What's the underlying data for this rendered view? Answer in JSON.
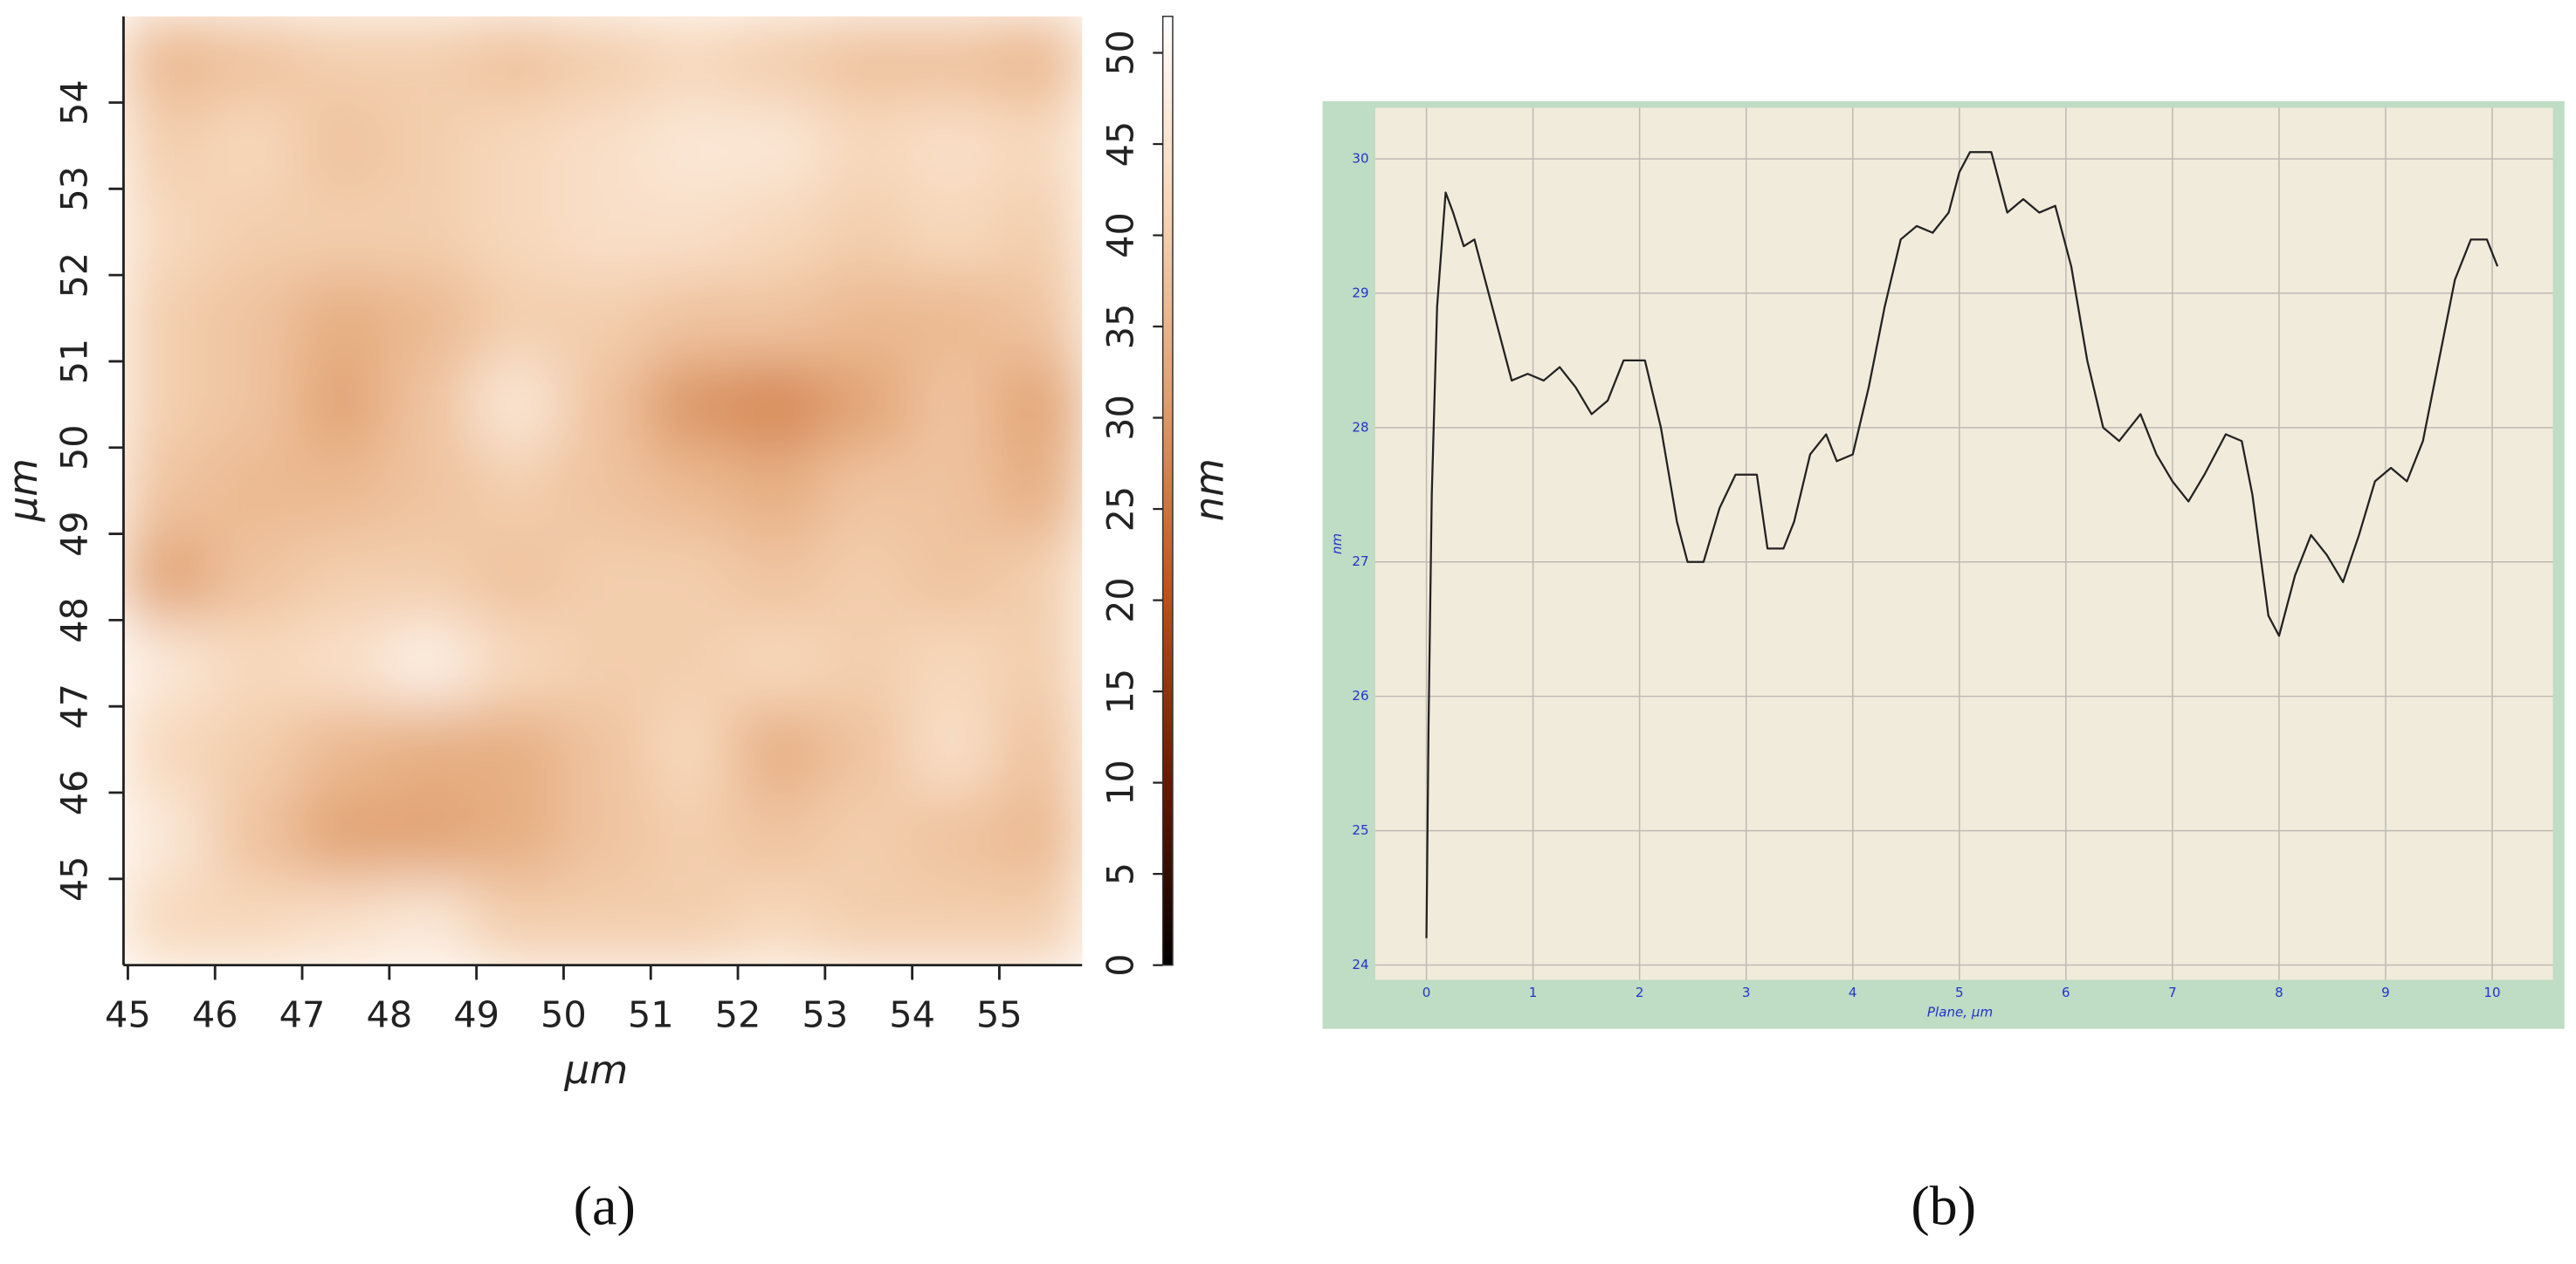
{
  "chart_data": [
    {
      "type": "heatmap",
      "xlabel": "µm",
      "ylabel": "µm",
      "zlabel": "nm",
      "xlim": [
        44.95,
        55.95
      ],
      "ylim": [
        44.0,
        55.0
      ],
      "zlim": [
        0,
        52
      ],
      "xticks": [
        45,
        46,
        47,
        48,
        49,
        50,
        51,
        52,
        53,
        54,
        55
      ],
      "yticks": [
        45,
        46,
        47,
        48,
        49,
        50,
        51,
        52,
        53,
        54
      ],
      "zticks": [
        0,
        5,
        10,
        15,
        20,
        25,
        30,
        35,
        40,
        45,
        50
      ],
      "colorscale": [
        "#000000",
        "#6b1a00",
        "#c0551a",
        "#e0a070",
        "#f7d6b8",
        "#ffffff"
      ],
      "z": [
        [
          36,
          38,
          40,
          40,
          38,
          40,
          42,
          40,
          38,
          38,
          36
        ],
        [
          40,
          42,
          38,
          40,
          42,
          44,
          46,
          46,
          42,
          44,
          42
        ],
        [
          42,
          40,
          40,
          40,
          42,
          44,
          44,
          42,
          40,
          42,
          40
        ],
        [
          40,
          38,
          34,
          36,
          40,
          40,
          38,
          38,
          36,
          36,
          38
        ],
        [
          40,
          38,
          32,
          38,
          46,
          38,
          30,
          28,
          32,
          38,
          32
        ],
        [
          38,
          36,
          36,
          38,
          40,
          38,
          36,
          34,
          38,
          38,
          34
        ],
        [
          32,
          38,
          40,
          40,
          38,
          40,
          40,
          38,
          40,
          38,
          40
        ],
        [
          46,
          42,
          44,
          48,
          42,
          40,
          40,
          42,
          40,
          42,
          40
        ],
        [
          42,
          40,
          36,
          34,
          34,
          38,
          42,
          34,
          38,
          44,
          38
        ],
        [
          46,
          38,
          32,
          32,
          34,
          38,
          40,
          38,
          40,
          38,
          36
        ],
        [
          42,
          42,
          44,
          46,
          40,
          40,
          40,
          42,
          40,
          40,
          40
        ]
      ],
      "caption": "(a)"
    },
    {
      "type": "line",
      "xlabel": "Plane, µm",
      "ylabel": "nm",
      "color": "#222222",
      "grid": true,
      "xlim": [
        -0.48,
        10.57
      ],
      "ylim": [
        23.89,
        30.38
      ],
      "xticks": [
        0,
        1,
        2,
        3,
        4,
        5,
        6,
        7,
        8,
        9,
        10
      ],
      "yticks": [
        24,
        25,
        26,
        27,
        28,
        29,
        30
      ],
      "x": [
        0,
        0.02,
        0.05,
        0.1,
        0.18,
        0.25,
        0.35,
        0.45,
        0.55,
        0.65,
        0.8,
        0.95,
        1.1,
        1.25,
        1.4,
        1.55,
        1.7,
        1.85,
        2.05,
        2.2,
        2.35,
        2.45,
        2.6,
        2.75,
        2.9,
        3.1,
        3.2,
        3.35,
        3.45,
        3.6,
        3.75,
        3.85,
        4.0,
        4.15,
        4.3,
        4.45,
        4.6,
        4.75,
        4.9,
        5.0,
        5.1,
        5.3,
        5.45,
        5.6,
        5.75,
        5.9,
        6.05,
        6.2,
        6.35,
        6.5,
        6.7,
        6.85,
        7.0,
        7.15,
        7.3,
        7.5,
        7.65,
        7.75,
        7.9,
        8.0,
        8.15,
        8.3,
        8.45,
        8.6,
        8.75,
        8.9,
        9.05,
        9.2,
        9.35,
        9.5,
        9.65,
        9.8,
        9.95,
        10.05
      ],
      "values": [
        24.2,
        25.8,
        27.5,
        28.9,
        29.75,
        29.6,
        29.35,
        29.4,
        29.1,
        28.8,
        28.35,
        28.4,
        28.35,
        28.45,
        28.3,
        28.1,
        28.2,
        28.5,
        28.5,
        28.0,
        27.3,
        27.0,
        27.0,
        27.4,
        27.65,
        27.65,
        27.1,
        27.1,
        27.3,
        27.8,
        27.95,
        27.75,
        27.8,
        28.3,
        28.9,
        29.4,
        29.5,
        29.45,
        29.6,
        29.9,
        30.05,
        30.05,
        29.6,
        29.7,
        29.6,
        29.65,
        29.2,
        28.5,
        28.0,
        27.9,
        28.1,
        27.8,
        27.6,
        27.45,
        27.65,
        27.95,
        27.9,
        27.5,
        26.6,
        26.45,
        26.9,
        27.2,
        27.05,
        26.85,
        27.2,
        27.6,
        27.7,
        27.6,
        27.9,
        28.5,
        29.1,
        29.4,
        29.4,
        29.2
      ],
      "caption": "(b)"
    }
  ]
}
